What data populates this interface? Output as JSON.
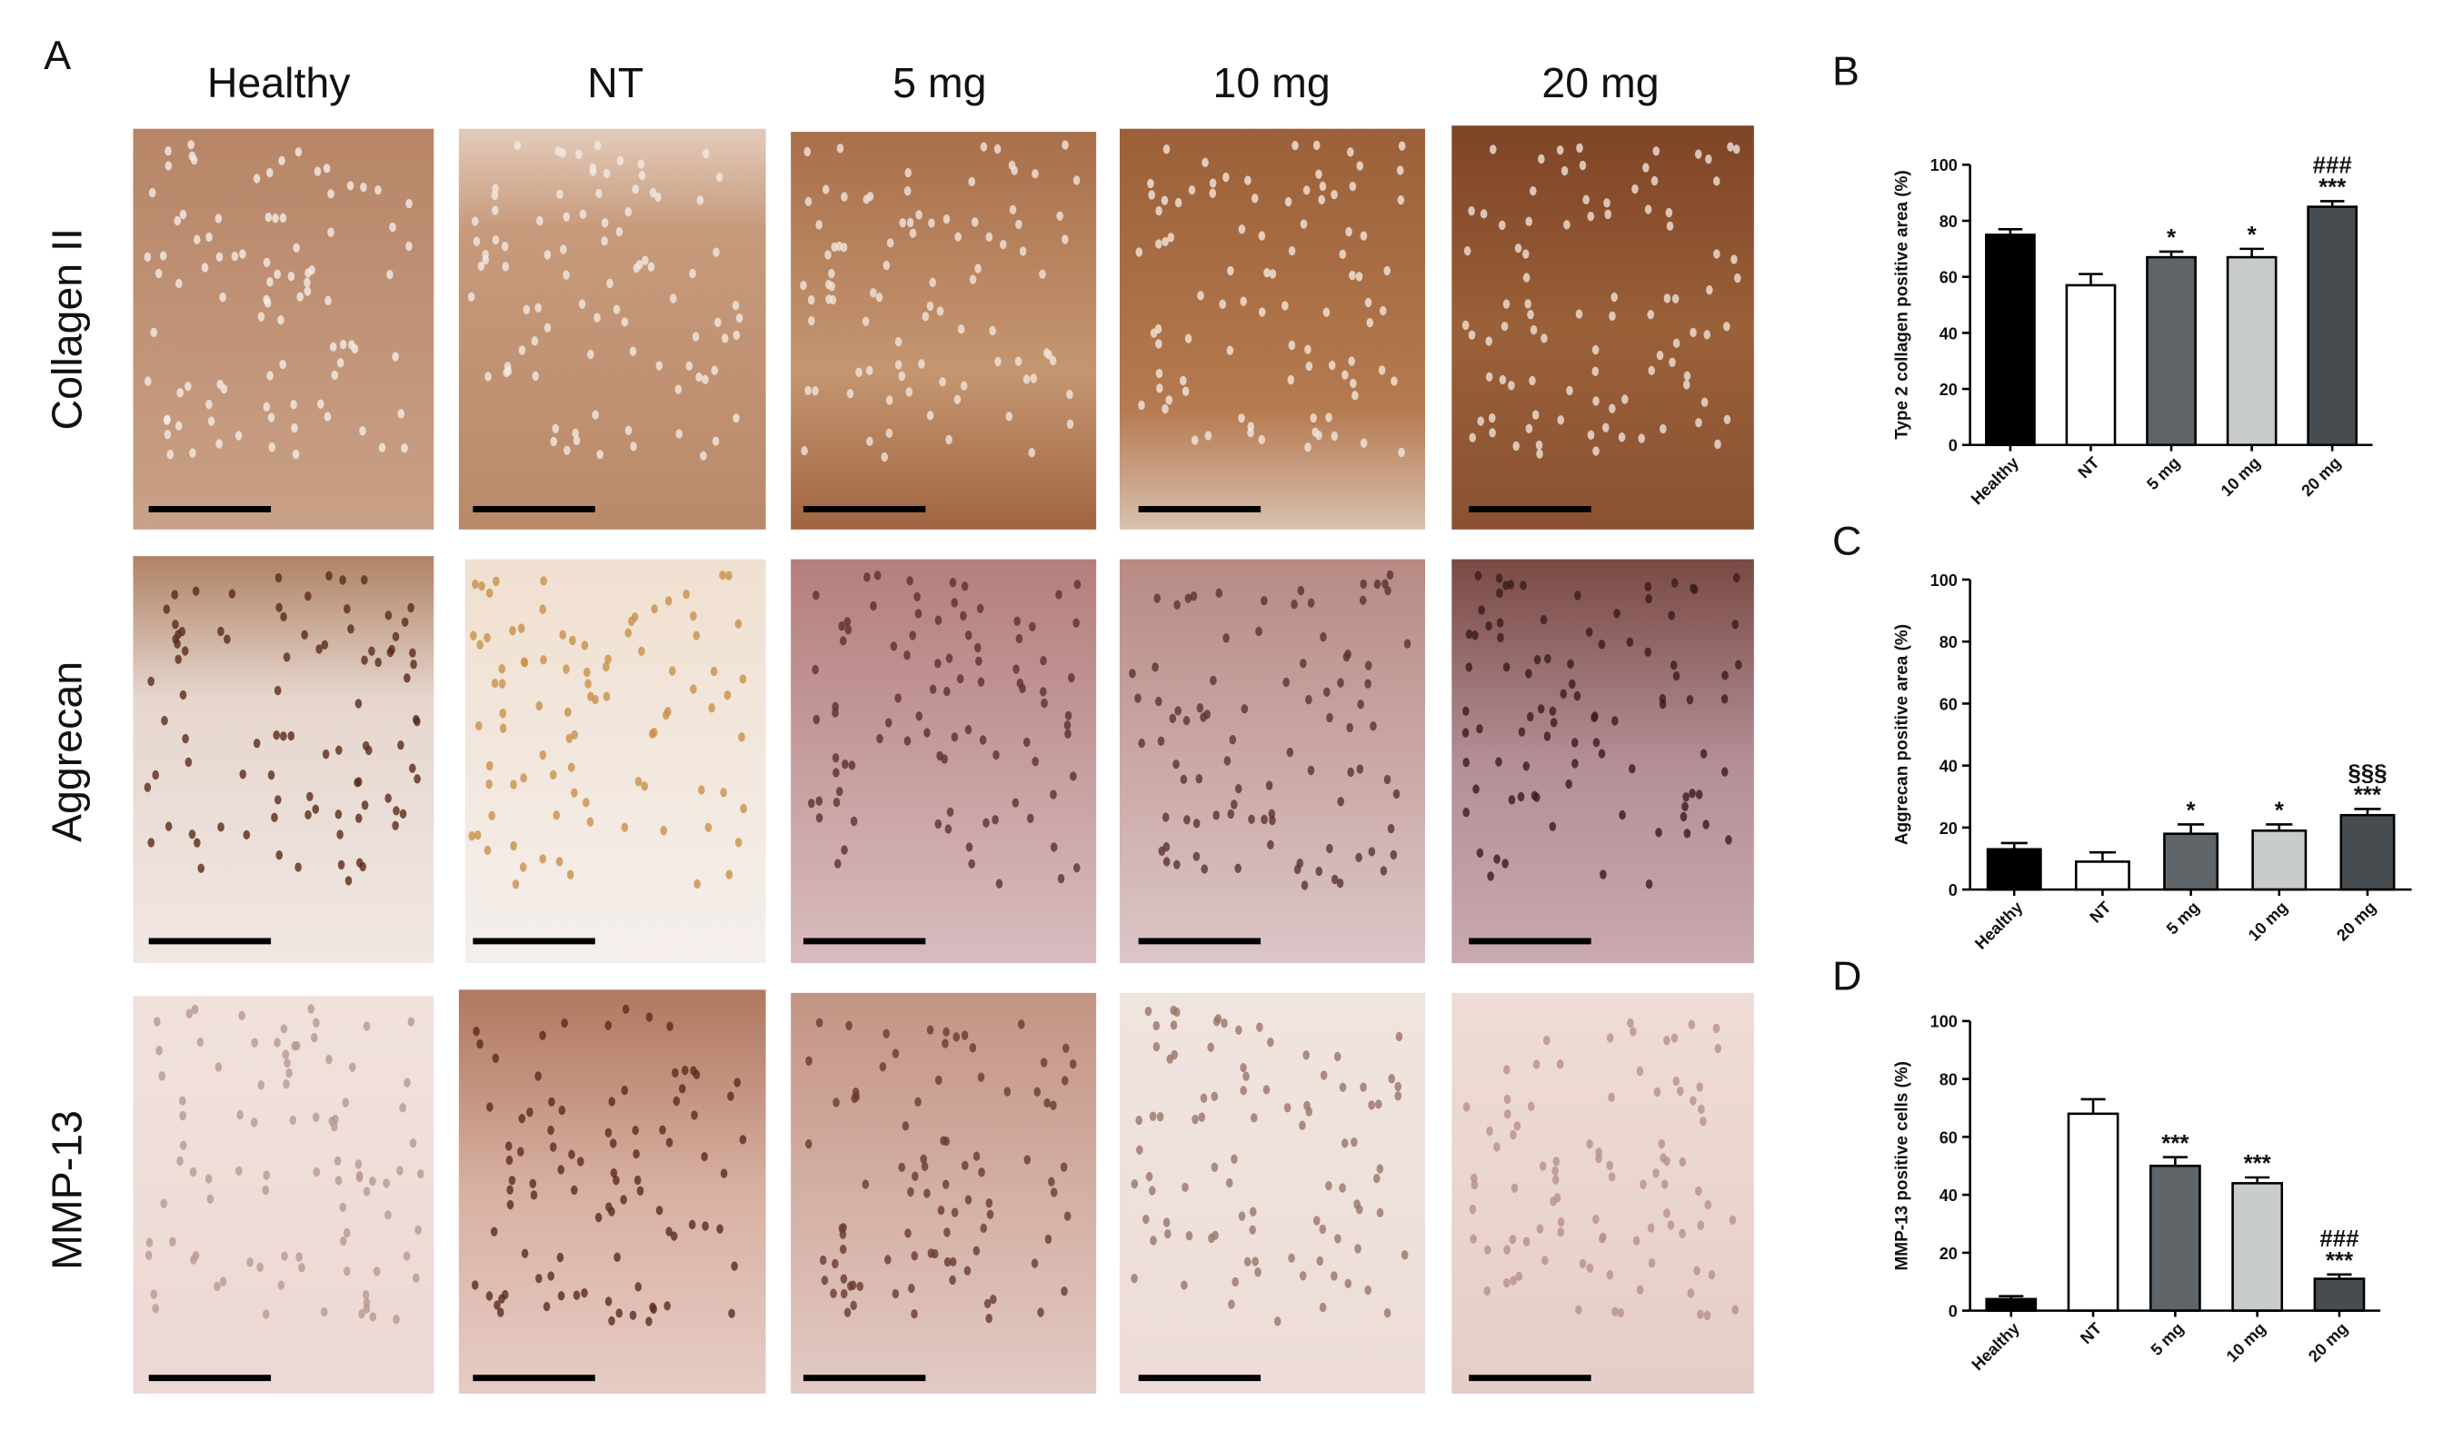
{
  "panel_a": {
    "label": "A",
    "columns": [
      "Healthy",
      "NT",
      "5 mg",
      "10 mg",
      "20 mg"
    ],
    "rows": [
      "Collagen II",
      "Aggrecan",
      "MMP-13"
    ]
  },
  "chart_data": [
    {
      "type": "bar",
      "panel_label": "B",
      "y_label": "Type 2 collagen positive area (%)",
      "categories": [
        "Healthy",
        "NT",
        "5 mg",
        "10 mg",
        "20 mg"
      ],
      "values": [
        75,
        57,
        67,
        67,
        85
      ],
      "errors": [
        2,
        4,
        2,
        3,
        2
      ],
      "colors": [
        "#000000",
        "#ffffff",
        "#5f6468",
        "#c9cccd",
        "#474c50"
      ],
      "annotations": [
        null,
        null,
        [
          "*"
        ],
        [
          "*"
        ],
        [
          "###",
          "***"
        ]
      ],
      "ylim": [
        0,
        100
      ],
      "yticks": [
        0,
        20,
        40,
        60,
        80,
        100
      ]
    },
    {
      "type": "bar",
      "panel_label": "C",
      "y_label": "Aggrecan positive area (%)",
      "categories": [
        "Healthy",
        "NT",
        "5 mg",
        "10 mg",
        "20 mg"
      ],
      "values": [
        13,
        9,
        18,
        19,
        24
      ],
      "errors": [
        2,
        3,
        3,
        2,
        2
      ],
      "colors": [
        "#000000",
        "#ffffff",
        "#5f6468",
        "#c9cccd",
        "#474c50"
      ],
      "annotations": [
        null,
        null,
        [
          "*"
        ],
        [
          "*"
        ],
        [
          "§§§",
          "***"
        ]
      ],
      "ylim": [
        0,
        100
      ],
      "yticks": [
        0,
        20,
        40,
        60,
        80,
        100
      ]
    },
    {
      "type": "bar",
      "panel_label": "D",
      "y_label": "MMP-13 positive cells (%)",
      "categories": [
        "Healthy",
        "NT",
        "5 mg",
        "10 mg",
        "20 mg"
      ],
      "values": [
        4,
        68,
        50,
        44,
        11
      ],
      "errors": [
        1,
        5,
        3,
        2,
        1.5
      ],
      "colors": [
        "#000000",
        "#ffffff",
        "#5f6468",
        "#c9cccd",
        "#474c50"
      ],
      "annotations": [
        null,
        null,
        [
          "***"
        ],
        [
          "***"
        ],
        [
          "###",
          "***"
        ]
      ],
      "ylim": [
        0,
        100
      ],
      "yticks": [
        0,
        20,
        40,
        60,
        80,
        100
      ]
    }
  ]
}
